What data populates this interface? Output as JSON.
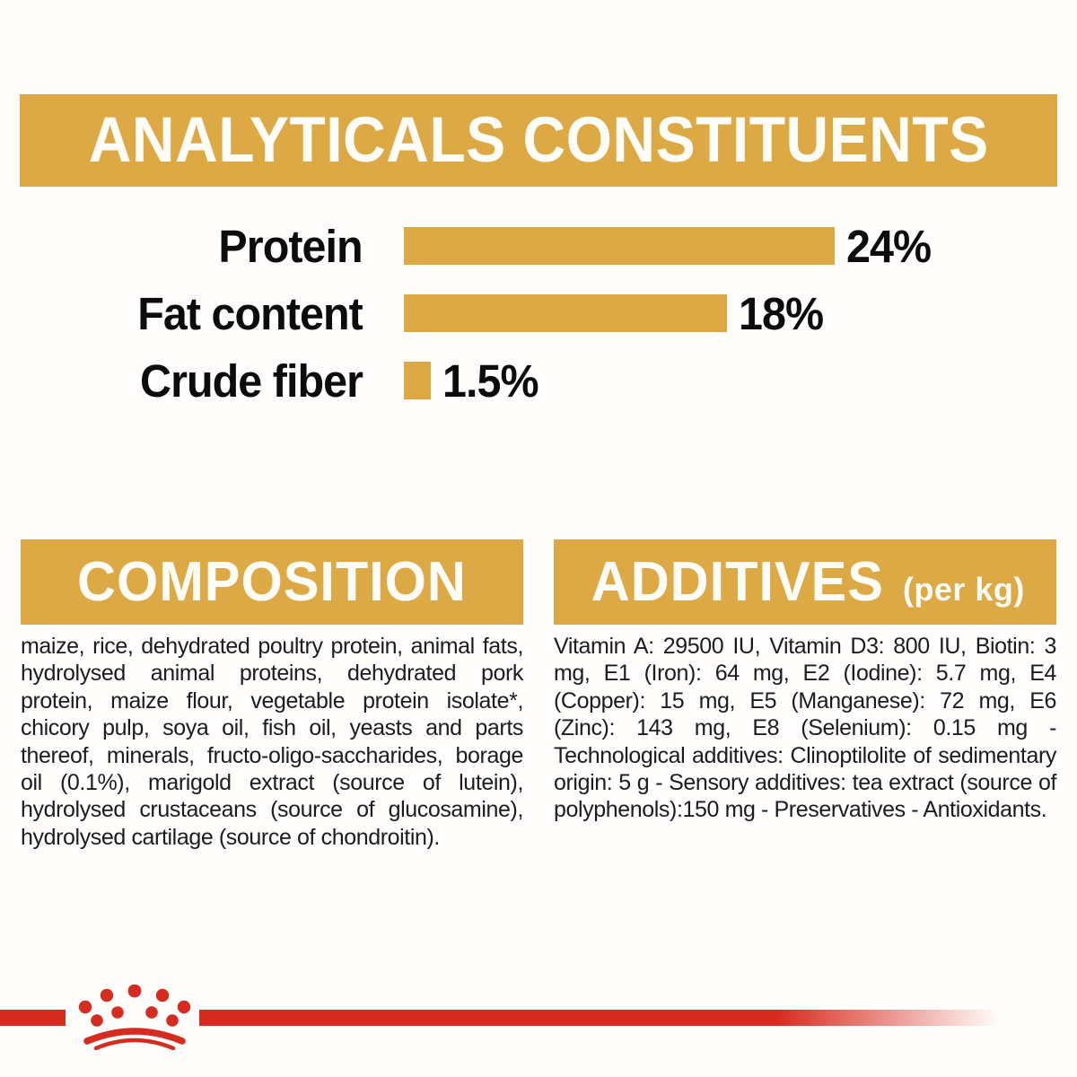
{
  "colors": {
    "gold": "#DCA945",
    "red": "#D62B1F",
    "header_text": "#FEFDF8",
    "body_text": "#1C1C1C"
  },
  "analyticals": {
    "title": "ANALYTICALS CONSTITUENTS"
  },
  "chart_data": {
    "type": "bar",
    "orientation": "horizontal",
    "title": "ANALYTICALS CONSTITUENTS",
    "categories": [
      "Protein",
      "Fat content",
      "Crude fiber"
    ],
    "values": [
      24,
      18,
      1.5
    ],
    "value_labels": [
      "24%",
      "18%",
      "1.5%"
    ],
    "unit": "%",
    "axis_max": 24,
    "bar_color": "#DCA945",
    "grid": false,
    "legend": false
  },
  "composition": {
    "title": "COMPOSITION",
    "body": "maize, rice, dehydrated poultry protein, animal fats, hydrolysed animal proteins, dehydrated pork protein, maize flour, vegetable protein isolate*, chicory pulp, soya oil, fish oil, yeasts and parts thereof, minerals, fructo-oligo-saccharides, borage oil (0.1%), marigold extract (source of lutein), hydrolysed crustaceans (source of glucosamine), hydrolysed cartilage (source of chondroitin)."
  },
  "additives": {
    "title": "ADDITIVES",
    "title_suffix": "(per kg)",
    "body": "Vitamin A: 29500 IU, Vitamin D3: 800 IU, Biotin: 3 mg, E1 (Iron): 64 mg, E2 (Iodine): 5.7 mg, E4 (Copper): 15 mg, E5 (Manganese): 72 mg, E6 (Zinc): 143 mg, E8 (Selenium): 0.15 mg - Technological additives: Clinoptilolite of sedimentary origin: 5 g - Sensory additives: tea extract (source of polyphenols):150 mg - Preservatives - Antioxidants.",
    "footnote_marker": "*"
  },
  "footer": {
    "logo": "royal-canin-crown"
  }
}
